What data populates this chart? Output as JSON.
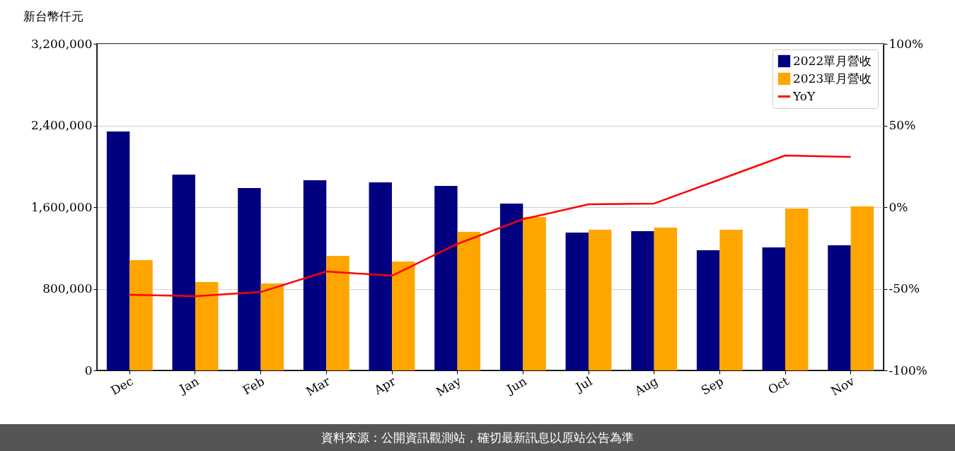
{
  "chart_data": {
    "type": "bar",
    "ylabel": "新台幣仟元",
    "categories": [
      "Dec",
      "Jan",
      "Feb",
      "Mar",
      "Apr",
      "May",
      "Jun",
      "Jul",
      "Aug",
      "Sep",
      "Oct",
      "Nov"
    ],
    "series": [
      {
        "name": "2022單月營收",
        "color": "#000080",
        "values": [
          2341000,
          1918000,
          1787000,
          1863000,
          1842000,
          1808000,
          1635000,
          1351000,
          1364000,
          1177000,
          1205000,
          1226000
        ]
      },
      {
        "name": "2023單月營收",
        "color": "#ffa500",
        "values": [
          1080000,
          866000,
          852000,
          1122000,
          1067000,
          1357000,
          1503000,
          1378000,
          1399000,
          1378000,
          1586000,
          1607000
        ]
      },
      {
        "name": "YoY",
        "type": "line",
        "axis": "y2",
        "color": "#ff0000",
        "values": [
          -53.7,
          -54.5,
          -52,
          -39.4,
          -42,
          -22.5,
          -7.4,
          1.7,
          2.2,
          16.9,
          31.6,
          30.7
        ]
      }
    ],
    "ylim": [
      0,
      3200000
    ],
    "yticks": [
      0,
      {
        "value": 800000,
        "label": "800,000"
      },
      {
        "value": 1600000,
        "label": "1,600,000"
      },
      {
        "value": 2400000,
        "label": "2,400,000"
      },
      {
        "value": 3200000,
        "label": "3,200,000"
      }
    ],
    "y2lim": [
      -100,
      100
    ],
    "y2ticks": [
      {
        "value": -100,
        "label": "-100%"
      },
      {
        "value": -50,
        "label": "-50%"
      },
      {
        "value": 0,
        "label": "0%"
      },
      {
        "value": 50,
        "label": "50%"
      },
      {
        "value": 100,
        "label": "100%"
      }
    ],
    "grid": "y",
    "legend": "top right",
    "annotations": [
      "資料來源：公開資訊觀測站，確切最新訊息以原站公告為準"
    ]
  }
}
